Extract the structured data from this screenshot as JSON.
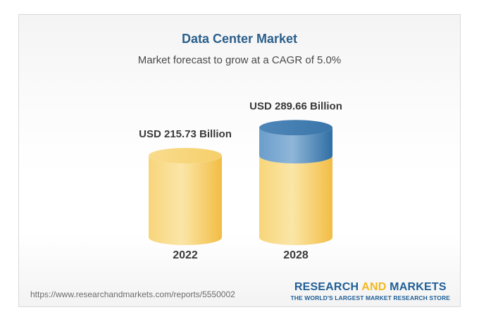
{
  "chart_data": {
    "type": "bar",
    "title": "Data Center Market",
    "subtitle": "Market forecast to grow at a CAGR of 5.0%",
    "categories": [
      "2022",
      "2028"
    ],
    "values": [
      215.73,
      289.66
    ],
    "value_labels": [
      "USD 215.73 Billion",
      "USD 289.66 Billion"
    ],
    "unit": "USD Billion",
    "cagr": "5.0%",
    "colors": {
      "base": "#f6cc5e",
      "base_light": "#fbe4a2",
      "growth": "#3f7cae",
      "growth_light": "#7aa9cf",
      "title": "#2b5f8c"
    },
    "legend": "none",
    "grid": false
  },
  "footer": {
    "source_url": "https://www.researchandmarkets.com/reports/5550002",
    "brand_part1": "RESEARCH ",
    "brand_part2": "AND",
    "brand_part3": " MARKETS",
    "brand_tagline": "THE WORLD'S LARGEST MARKET RESEARCH STORE"
  }
}
